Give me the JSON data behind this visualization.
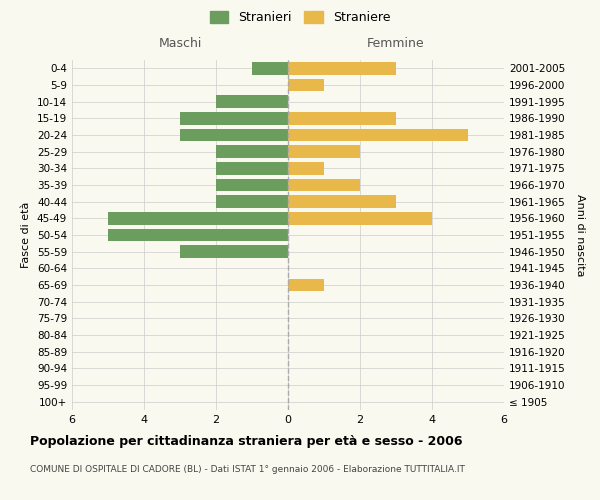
{
  "age_groups": [
    "100+",
    "95-99",
    "90-94",
    "85-89",
    "80-84",
    "75-79",
    "70-74",
    "65-69",
    "60-64",
    "55-59",
    "50-54",
    "45-49",
    "40-44",
    "35-39",
    "30-34",
    "25-29",
    "20-24",
    "15-19",
    "10-14",
    "5-9",
    "0-4"
  ],
  "birth_years": [
    "≤ 1905",
    "1906-1910",
    "1911-1915",
    "1916-1920",
    "1921-1925",
    "1926-1930",
    "1931-1935",
    "1936-1940",
    "1941-1945",
    "1946-1950",
    "1951-1955",
    "1956-1960",
    "1961-1965",
    "1966-1970",
    "1971-1975",
    "1976-1980",
    "1981-1985",
    "1986-1990",
    "1991-1995",
    "1996-2000",
    "2001-2005"
  ],
  "maschi": [
    0,
    0,
    0,
    0,
    0,
    0,
    0,
    0,
    0,
    3,
    5,
    5,
    2,
    2,
    2,
    2,
    3,
    3,
    2,
    0,
    1
  ],
  "femmine": [
    0,
    0,
    0,
    0,
    0,
    0,
    0,
    1,
    0,
    0,
    0,
    4,
    3,
    2,
    1,
    2,
    5,
    3,
    0,
    1,
    3
  ],
  "maschi_color": "#6b9e5e",
  "femmine_color": "#e8b84b",
  "title": "Popolazione per cittadinanza straniera per età e sesso - 2006",
  "subtitle": "COMUNE DI OSPITALE DI CADORE (BL) - Dati ISTAT 1° gennaio 2006 - Elaborazione TUTTITALIA.IT",
  "xlabel_left": "Maschi",
  "xlabel_right": "Femmine",
  "ylabel_left": "Fasce di età",
  "ylabel_right": "Anni di nascita",
  "legend_male": "Stranieri",
  "legend_female": "Straniere",
  "xlim": 6,
  "background_color": "#f9f9f0",
  "grid_color": "#cccccc"
}
